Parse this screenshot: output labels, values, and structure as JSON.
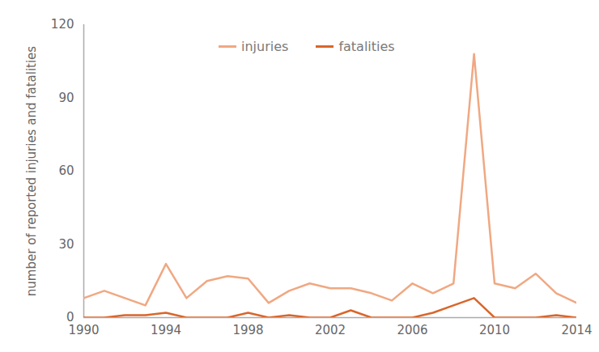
{
  "chart_data": {
    "type": "line",
    "y_label": "number of reported injuries and fatalities",
    "x": [
      1990,
      1991,
      1992,
      1993,
      1994,
      1995,
      1996,
      1997,
      1998,
      1999,
      2000,
      2001,
      2002,
      2003,
      2004,
      2005,
      2006,
      2007,
      2008,
      2009,
      2010,
      2011,
      2012,
      2013,
      2014
    ],
    "series": [
      {
        "name": "injuries",
        "color": "#f0a882",
        "values": [
          8,
          11,
          8,
          5,
          22,
          8,
          15,
          17,
          16,
          6,
          11,
          14,
          12,
          12,
          10,
          7,
          14,
          10,
          14,
          108,
          14,
          12,
          18,
          10,
          6
        ]
      },
      {
        "name": "fatalities",
        "color": "#d9662b",
        "values": [
          0,
          0,
          1,
          1,
          2,
          0,
          0,
          0,
          2,
          0,
          1,
          0,
          0,
          3,
          0,
          0,
          0,
          2,
          5,
          8,
          0,
          0,
          0,
          1,
          0
        ]
      }
    ],
    "xlim": [
      1990,
      2014
    ],
    "xticks": [
      1990,
      1994,
      1998,
      2002,
      2006,
      2010,
      2014
    ],
    "ylim": [
      0,
      120
    ],
    "yticks": [
      0,
      30,
      60,
      90,
      120
    ],
    "grid": false,
    "legend": "top"
  }
}
